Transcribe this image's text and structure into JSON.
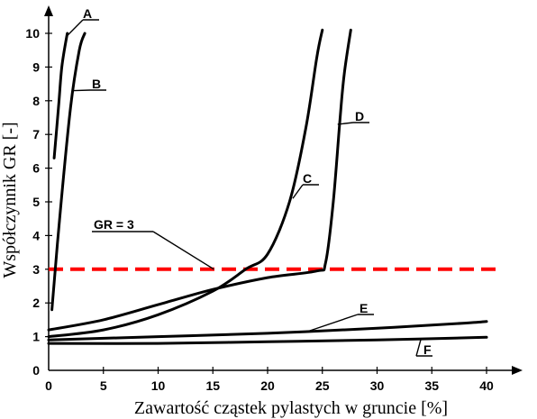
{
  "chart_data": {
    "type": "line",
    "xlabel": "Zawartość cząstek pylastych w gruncie [%]",
    "ylabel": "Współczynnik GR [-]",
    "xlim": [
      0,
      42
    ],
    "ylim": [
      0,
      10.5
    ],
    "x_ticks": [
      "0",
      "5",
      "10",
      "15",
      "20",
      "25",
      "30",
      "35",
      "40"
    ],
    "y_ticks": [
      "0",
      "1",
      "2",
      "3",
      "4",
      "5",
      "6",
      "7",
      "8",
      "9",
      "10"
    ],
    "grid": false,
    "series": [
      {
        "name": "A",
        "points": [
          [
            0.5,
            6.3
          ],
          [
            0.9,
            7.8
          ],
          [
            1.2,
            9.0
          ],
          [
            1.7,
            10.0
          ]
        ]
      },
      {
        "name": "B",
        "points": [
          [
            0.3,
            1.8
          ],
          [
            1.0,
            4.5
          ],
          [
            2.0,
            7.8
          ],
          [
            2.8,
            9.5
          ],
          [
            3.3,
            10.0
          ]
        ]
      },
      {
        "name": "C",
        "points": [
          [
            0,
            1.0
          ],
          [
            5,
            1.2
          ],
          [
            10,
            1.65
          ],
          [
            15,
            2.35
          ],
          [
            18,
            3.0
          ],
          [
            20,
            3.45
          ],
          [
            22,
            5.0
          ],
          [
            23.5,
            7.2
          ],
          [
            24.5,
            9.3
          ],
          [
            25,
            10.1
          ]
        ]
      },
      {
        "name": "D",
        "points": [
          [
            0,
            1.2
          ],
          [
            5,
            1.5
          ],
          [
            10,
            1.95
          ],
          [
            15,
            2.4
          ],
          [
            20,
            2.75
          ],
          [
            24.5,
            2.95
          ],
          [
            25.3,
            3.2
          ],
          [
            26,
            5.0
          ],
          [
            26.6,
            7.4
          ],
          [
            27,
            8.8
          ],
          [
            27.6,
            10.1
          ]
        ]
      },
      {
        "name": "E",
        "points": [
          [
            0,
            0.9
          ],
          [
            10,
            1.0
          ],
          [
            20,
            1.1
          ],
          [
            30,
            1.25
          ],
          [
            38,
            1.4
          ],
          [
            40,
            1.45
          ]
        ]
      },
      {
        "name": "F",
        "points": [
          [
            0,
            0.8
          ],
          [
            10,
            0.8
          ],
          [
            20,
            0.85
          ],
          [
            30,
            0.9
          ],
          [
            40,
            0.98
          ]
        ]
      }
    ],
    "reference_line": {
      "label": "GR = 3",
      "y": 3,
      "color": "#ff0000"
    },
    "colors": {
      "curves": "#000000",
      "reference": "#ff0000"
    }
  }
}
